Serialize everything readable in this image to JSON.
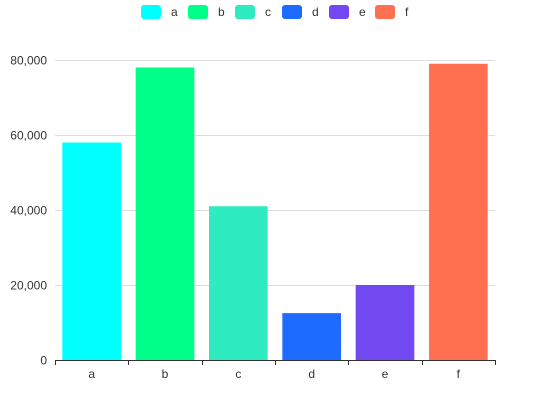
{
  "chart_data": {
    "type": "bar",
    "categories": [
      "a",
      "b",
      "c",
      "d",
      "e",
      "f"
    ],
    "values": [
      58000,
      78000,
      41000,
      12500,
      20000,
      79000
    ],
    "colors": [
      "#00FFFF",
      "#00FF88",
      "#2EEBC0",
      "#1E6BFF",
      "#7248F0",
      "#FF7050"
    ],
    "legend": [
      "a",
      "b",
      "c",
      "d",
      "e",
      "f"
    ],
    "legend_position": "top-center",
    "ylim": [
      0,
      80000
    ],
    "y_ticks": [
      0,
      20000,
      40000,
      60000,
      80000
    ],
    "y_tick_labels": [
      "0",
      "20,000",
      "40,000",
      "60,000",
      "80,000"
    ],
    "grid": true,
    "title": "",
    "xlabel": "",
    "ylabel": ""
  }
}
